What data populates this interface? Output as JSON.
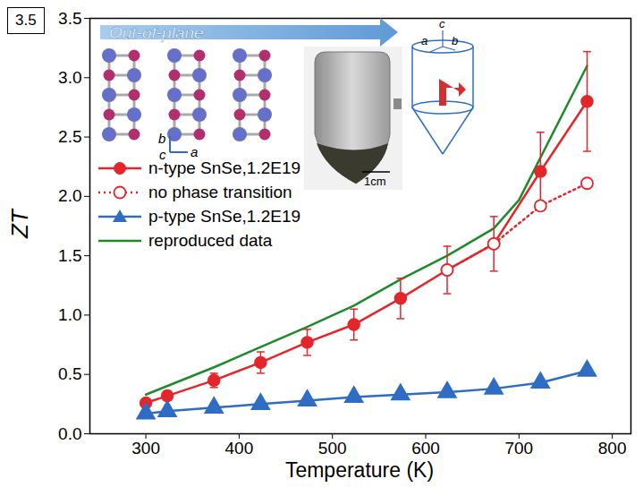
{
  "chart_data": {
    "type": "line",
    "panel_label": "3.5",
    "x_label": "Temperature (K)",
    "y_label": "ZT",
    "xlim": [
      240,
      820
    ],
    "xticks": [
      300,
      400,
      500,
      600,
      700,
      800
    ],
    "ylim": [
      0,
      3.5
    ],
    "yticks": [
      {
        "value": 0,
        "label": "0.0"
      },
      {
        "value": 0.5,
        "label": "0.5"
      },
      {
        "value": 1,
        "label": "1.0"
      },
      {
        "value": 1.5,
        "label": "1.5"
      },
      {
        "value": 2,
        "label": "2.0"
      },
      {
        "value": 2.5,
        "label": "2.5"
      },
      {
        "value": 3,
        "label": "3.0"
      },
      {
        "value": 3.5,
        "label": "3.5"
      }
    ],
    "grid": false,
    "legend": "upper left",
    "annotations": [
      "Out-of-plane",
      "1cm",
      "a",
      "b",
      "c"
    ],
    "series": [
      {
        "name": "n-type SnSe,1.2E19",
        "color": "#e3262b",
        "marker": "circle",
        "line_style": "solid",
        "x": [
          300,
          323,
          373,
          423,
          473,
          523,
          573,
          623,
          673,
          723,
          773
        ],
        "values": [
          0.26,
          0.32,
          0.45,
          0.6,
          0.77,
          0.92,
          1.14,
          1.38,
          1.6,
          2.21,
          2.8
        ],
        "errors": [
          0.03,
          0.04,
          0.06,
          0.09,
          0.11,
          0.13,
          0.17,
          0.2,
          0.23,
          0.33,
          0.42
        ]
      },
      {
        "name": "no phase transition",
        "color": "#e3262b",
        "marker": "open_circle",
        "line_style": "dotted",
        "x": [
          300,
          323,
          373,
          423,
          473,
          523,
          573,
          623,
          673,
          723,
          773
        ],
        "values": [
          null,
          null,
          null,
          null,
          null,
          null,
          null,
          1.38,
          1.6,
          1.92,
          2.11
        ]
      },
      {
        "name": "p-type SnSe,1.2E19",
        "color": "#2f6cc4",
        "marker": "triangle",
        "line_style": "solid",
        "x": [
          300,
          323,
          373,
          423,
          473,
          523,
          573,
          623,
          673,
          723,
          773
        ],
        "values": [
          0.17,
          0.19,
          0.22,
          0.25,
          0.28,
          0.31,
          0.33,
          0.35,
          0.38,
          0.43,
          0.53
        ]
      },
      {
        "name": "reproduced data",
        "color": "#1f8a2c",
        "marker": "none",
        "line_style": "solid",
        "x": [
          300,
          373,
          423,
          473,
          523,
          573,
          623,
          673,
          700,
          773
        ],
        "values": [
          0.33,
          0.56,
          0.73,
          0.9,
          1.08,
          1.3,
          1.5,
          1.73,
          1.97,
          3.1
        ]
      }
    ]
  }
}
